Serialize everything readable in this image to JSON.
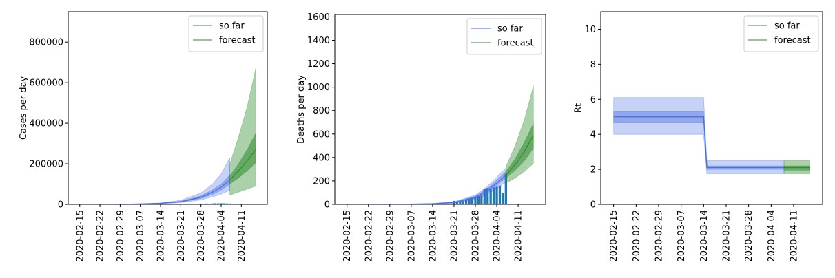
{
  "colors": {
    "so_far": "#4169e1",
    "forecast": "#2e8b2e",
    "bars": "#1f77b4"
  },
  "chart_data": [
    {
      "type": "area",
      "ylabel": "Cases per day",
      "ylim": [
        0,
        950000
      ],
      "yticks": [
        0,
        200000,
        400000,
        600000,
        800000
      ],
      "x_ticks": [
        "2020-02-15",
        "2020-02-22",
        "2020-02-29",
        "2020-03-07",
        "2020-03-14",
        "2020-03-21",
        "2020-03-28",
        "2020-04-04",
        "2020-04-11"
      ],
      "xlim": [
        "2020-02-11",
        "2020-04-20"
      ],
      "legend": {
        "placement": "top-right",
        "entries": [
          "so far",
          "forecast"
        ]
      },
      "so_far": {
        "x": [
          "2020-02-15",
          "2020-02-22",
          "2020-02-29",
          "2020-03-07",
          "2020-03-14",
          "2020-03-21",
          "2020-03-28",
          "2020-04-01",
          "2020-04-04",
          "2020-04-07"
        ],
        "median": [
          0,
          100,
          500,
          2000,
          5000,
          13000,
          35000,
          60000,
          85000,
          120000
        ],
        "inner_low": [
          0,
          80,
          400,
          1700,
          4300,
          11000,
          29000,
          49000,
          70000,
          100000
        ],
        "inner_high": [
          0,
          120,
          600,
          2300,
          5800,
          15500,
          42000,
          72000,
          100000,
          145000
        ],
        "outer_low": [
          0,
          60,
          300,
          1300,
          3500,
          8500,
          22000,
          37000,
          50000,
          70000
        ],
        "outer_high": [
          0,
          150,
          750,
          2800,
          7000,
          20000,
          56000,
          100000,
          150000,
          230000
        ]
      },
      "forecast": {
        "x": [
          "2020-04-07",
          "2020-04-10",
          "2020-04-13",
          "2020-04-16"
        ],
        "median": [
          120000,
          165000,
          215000,
          270000
        ],
        "inner_low": [
          100000,
          130000,
          165000,
          205000
        ],
        "inner_high": [
          140000,
          200000,
          270000,
          350000
        ],
        "outer_low": [
          45000,
          60000,
          75000,
          90000
        ],
        "outer_high": [
          200000,
          330000,
          480000,
          670000
        ]
      },
      "bars": {
        "x": [
          "2020-03-20",
          "2020-03-22",
          "2020-03-24",
          "2020-03-26",
          "2020-03-28",
          "2020-03-30",
          "2020-04-01",
          "2020-04-02",
          "2020-04-03",
          "2020-04-04",
          "2020-04-05",
          "2020-04-06",
          "2020-04-07"
        ],
        "values": [
          1000,
          2000,
          2500,
          3000,
          3500,
          4000,
          4500,
          5000,
          5200,
          5500,
          5000,
          4500,
          4000
        ]
      }
    },
    {
      "type": "area",
      "ylabel": "Deaths per day",
      "ylim": [
        0,
        1620
      ],
      "yticks": [
        0,
        200,
        400,
        600,
        800,
        1000,
        1200,
        1400,
        1600
      ],
      "x_ticks": [
        "2020-02-15",
        "2020-02-22",
        "2020-02-29",
        "2020-03-07",
        "2020-03-14",
        "2020-03-21",
        "2020-03-28",
        "2020-04-04",
        "2020-04-11"
      ],
      "xlim": [
        "2020-02-11",
        "2020-04-20"
      ],
      "legend": {
        "placement": "top-right",
        "entries": [
          "so far",
          "forecast"
        ]
      },
      "so_far": {
        "x": [
          "2020-02-15",
          "2020-02-22",
          "2020-02-29",
          "2020-03-07",
          "2020-03-14",
          "2020-03-21",
          "2020-03-28",
          "2020-04-01",
          "2020-04-04",
          "2020-04-07"
        ],
        "median": [
          0,
          0,
          1,
          2,
          5,
          15,
          60,
          120,
          180,
          250
        ],
        "inner_low": [
          0,
          0,
          1,
          2,
          4,
          12,
          52,
          105,
          160,
          225
        ],
        "inner_high": [
          0,
          0,
          1,
          3,
          6,
          18,
          70,
          135,
          205,
          280
        ],
        "outer_low": [
          0,
          0,
          0,
          1,
          3,
          9,
          42,
          88,
          135,
          190
        ],
        "outer_high": [
          0,
          1,
          2,
          4,
          8,
          22,
          80,
          155,
          230,
          310
        ]
      },
      "forecast": {
        "x": [
          "2020-04-07",
          "2020-04-10",
          "2020-04-13",
          "2020-04-16"
        ],
        "median": [
          250,
          340,
          450,
          590
        ],
        "inner_low": [
          225,
          290,
          370,
          480
        ],
        "inner_high": [
          280,
          390,
          530,
          690
        ],
        "outer_low": [
          180,
          225,
          280,
          350
        ],
        "outer_high": [
          320,
          500,
          720,
          1010
        ]
      },
      "bars": {
        "x": [
          "2020-03-21",
          "2020-03-22",
          "2020-03-23",
          "2020-03-24",
          "2020-03-25",
          "2020-03-26",
          "2020-03-27",
          "2020-03-28",
          "2020-03-29",
          "2020-03-30",
          "2020-03-31",
          "2020-04-01",
          "2020-04-02",
          "2020-04-03",
          "2020-04-04",
          "2020-04-05",
          "2020-04-06",
          "2020-04-07"
        ],
        "values": [
          30,
          18,
          25,
          28,
          35,
          45,
          50,
          65,
          70,
          75,
          130,
          140,
          135,
          145,
          150,
          160,
          95,
          260
        ]
      }
    },
    {
      "type": "area",
      "ylabel": "Rt",
      "ylim": [
        0,
        11
      ],
      "yticks": [
        0,
        2,
        4,
        6,
        8,
        10
      ],
      "x_ticks": [
        "2020-02-15",
        "2020-02-22",
        "2020-02-29",
        "2020-03-07",
        "2020-03-14",
        "2020-03-21",
        "2020-03-28",
        "2020-04-04",
        "2020-04-11"
      ],
      "xlim": [
        "2020-02-11",
        "2020-04-20"
      ],
      "legend": {
        "placement": "top-right",
        "entries": [
          "so far",
          "forecast"
        ]
      },
      "so_far": {
        "x": [
          "2020-02-15",
          "2020-03-14",
          "2020-03-15",
          "2020-04-08"
        ],
        "median": [
          5.0,
          5.0,
          2.1,
          2.1
        ],
        "inner_low": [
          4.65,
          4.65,
          2.0,
          2.0
        ],
        "inner_high": [
          5.3,
          5.3,
          2.2,
          2.2
        ],
        "outer_low": [
          4.0,
          4.0,
          1.75,
          1.75
        ],
        "outer_high": [
          6.1,
          6.1,
          2.5,
          2.5
        ]
      },
      "forecast": {
        "x": [
          "2020-04-08",
          "2020-04-16"
        ],
        "median": [
          2.1,
          2.1
        ],
        "inner_low": [
          1.95,
          1.95
        ],
        "inner_high": [
          2.2,
          2.2
        ],
        "outer_low": [
          1.75,
          1.75
        ],
        "outer_high": [
          2.5,
          2.5
        ]
      }
    }
  ]
}
